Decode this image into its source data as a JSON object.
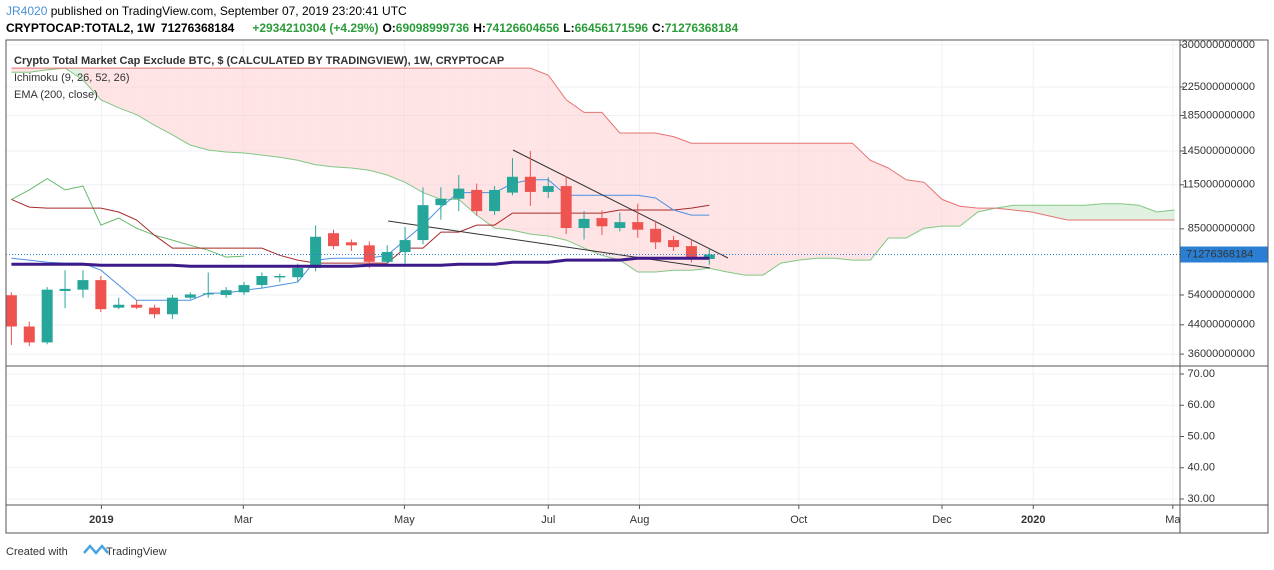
{
  "header": {
    "author": "JR4020",
    "published": " published on TradingView.com, September 07, 2019 23:20:41 UTC",
    "symbol": "CRYPTOCAP:TOTAL2, 1W",
    "last": "71276368184",
    "change": "+2934210304 (+4.29%)",
    "ohlc": [
      {
        "label": "O:",
        "value": "69098999736"
      },
      {
        "label": "H:",
        "value": "74126604656"
      },
      {
        "label": "L:",
        "value": "66456171596"
      },
      {
        "label": "C:",
        "value": "71276368184"
      }
    ]
  },
  "chart_data": [
    {
      "type": "candlestick",
      "title": "Crypto Total Market Cap Exclude BTC, $ (CALCULATED BY TRADINGVIEW), 1W, CRYPTOCAP",
      "indicators": [
        "Ichimoku (9, 26, 52, 26)",
        "EMA (200, close)"
      ],
      "log_scale": true,
      "ylim": [
        33400000000,
        310500000000
      ],
      "yticks": [
        300000000000,
        225000000000,
        185000000000,
        145000000000,
        115000000000,
        85000000000,
        54000000000,
        44000000000,
        36000000000
      ],
      "xlim": [
        -0.3,
        65.3
      ],
      "xticks": [
        {
          "value": 5.03,
          "label": "2019"
        },
        {
          "value": 12.96,
          "label": "Mar"
        },
        {
          "value": 21.96,
          "label": "May"
        },
        {
          "value": 30.0,
          "label": "Jul"
        },
        {
          "value": 35.1,
          "label": "Aug"
        },
        {
          "value": 44.0,
          "label": "Oct"
        },
        {
          "value": 52.0,
          "label": "Dec"
        },
        {
          "value": 57.1,
          "label": "2020"
        },
        {
          "value": 64.9,
          "label": "Ma"
        }
      ],
      "up_color": "#26a69a",
      "down_color": "#ef5350",
      "cloud_up_color": "#c8e6c9",
      "cloud_down_color": "#ffcdd2",
      "last_color": "#2a7fd4",
      "open": [
        53900000000,
        43500000000,
        39000000000,
        55500000000,
        56000000000,
        59800000000,
        49500000000,
        50500000000,
        49500000000,
        47300000000,
        53000000000,
        54200000000,
        54000000000,
        55000000000,
        57800000000,
        60900000000,
        61000000000,
        65000000000,
        82500000000,
        77500000000,
        75900000000,
        67800000000,
        72500000000,
        78700000000,
        100000000000,
        104500000000,
        111000000000,
        96000000000,
        109000000000,
        121500000000,
        109500000000,
        114000000000,
        85500000000,
        91500000000,
        85500000000,
        89000000000,
        85000000000,
        78700000000,
        75500000000,
        69098999736
      ],
      "high": [
        55000000000,
        45000000000,
        57000000000,
        64000000000,
        64000000000,
        61500000000,
        53000000000,
        52000000000,
        50500000000,
        54000000000,
        55000000000,
        63000000000,
        57000000000,
        59000000000,
        63000000000,
        62500000000,
        67000000000,
        87000000000,
        84500000000,
        79000000000,
        78000000000,
        76000000000,
        86000000000,
        113000000000,
        113000000000,
        123000000000,
        116000000000,
        114000000000,
        138000000000,
        145000000000,
        121000000000,
        122000000000,
        96000000000,
        96500000000,
        95000000000,
        101000000000,
        90000000000,
        81000000000,
        79000000000,
        74126604656
      ],
      "low": [
        38300000000,
        38000000000,
        38500000000,
        49300000000,
        53000000000,
        48000000000,
        49000000000,
        49000000000,
        46000000000,
        45800000000,
        52500000000,
        53000000000,
        53000000000,
        54000000000,
        56500000000,
        59000000000,
        59000000000,
        63500000000,
        74000000000,
        73000000000,
        65000000000,
        65500000000,
        67000000000,
        76500000000,
        90500000000,
        96000000000,
        93000000000,
        93500000000,
        107000000000,
        99500000000,
        105000000000,
        82000000000,
        79000000000,
        81500000000,
        83500000000,
        80000000000,
        74000000000,
        73000000000,
        67500000000,
        66456171596
      ],
      "close": [
        43500000000,
        39000000000,
        56000000000,
        56300000000,
        59800000000,
        49000000000,
        50500000000,
        49500000000,
        47300000000,
        53000000000,
        54200000000,
        54600000000,
        55800000000,
        57800000000,
        61500000000,
        61500000000,
        65000000000,
        80500000000,
        75500000000,
        75900000000,
        67800000000,
        72500000000,
        78700000000,
        100000000000,
        104500000000,
        112000000000,
        96000000000,
        111000000000,
        121500000000,
        109500000000,
        114000000000,
        85500000000,
        91000000000,
        86500000000,
        89000000000,
        84500000000,
        77500000000,
        75000000000,
        69100000000,
        71276368184
      ],
      "series": [
        {
          "name": "Leading Span A",
          "color": "#81c784",
          "width": 1,
          "values": [
            249000000000,
            249000000000,
            253000000000,
            256000000000,
            236000000000,
            206000000000,
            195000000000,
            186000000000,
            173000000000,
            162000000000,
            151000000000,
            146000000000,
            144000000000,
            143000000000,
            141000000000,
            139000000000,
            136000000000,
            132000000000,
            130000000000,
            129000000000,
            127000000000,
            123000000000,
            117000000000,
            109000000000,
            104000000000,
            104000000000,
            93400000000,
            85400000000,
            84200000000,
            82000000000,
            80900000000,
            78700000000,
            74500000000,
            70900000000,
            68600000000,
            63200000000,
            63200000000,
            64000000000,
            64000000000,
            64900000000,
            63200000000,
            61900000000,
            61900000000,
            67200000000,
            68600000000,
            69500000000,
            69500000000,
            68600000000,
            68600000000,
            79800000000,
            79800000000,
            85400000000,
            86600000000,
            86600000000,
            95400000000,
            98000000000,
            100000000000,
            100000000000,
            100000000000,
            100000000000,
            100000000000,
            101000000000,
            101000000000,
            100000000000,
            95400000000,
            96700000000
          ]
        },
        {
          "name": "Leading Span B",
          "color": "#e57373",
          "width": 1,
          "values": [
            256000000000,
            256000000000,
            256000000000,
            256000000000,
            256000000000,
            256000000000,
            256000000000,
            256000000000,
            256000000000,
            256000000000,
            256000000000,
            256000000000,
            256000000000,
            256000000000,
            256000000000,
            256000000000,
            256000000000,
            256000000000,
            256000000000,
            256000000000,
            256000000000,
            256000000000,
            256000000000,
            256000000000,
            256000000000,
            256000000000,
            256000000000,
            256000000000,
            256000000000,
            256000000000,
            244000000000,
            206000000000,
            189000000000,
            189000000000,
            164000000000,
            164000000000,
            164000000000,
            160000000000,
            153000000000,
            153000000000,
            153000000000,
            153000000000,
            153000000000,
            153000000000,
            153000000000,
            153000000000,
            153000000000,
            153000000000,
            136000000000,
            129000000000,
            119000000000,
            117000000000,
            104000000000,
            99300000000,
            98000000000,
            98000000000,
            96700000000,
            95400000000,
            92800000000,
            90300000000,
            90300000000,
            90300000000,
            90300000000,
            90300000000,
            90300000000,
            90300000000
          ]
        },
        {
          "name": "Lagging Span",
          "color": "#66bb6a",
          "width": 1,
          "values": [
            104000000000,
            111000000000,
            120000000000,
            111000000000,
            114000000000,
            87200000000,
            91500000000,
            85400000000,
            81400000000,
            78700000000,
            75900000000,
            73400000000,
            70000000000,
            70500000000
          ]
        },
        {
          "name": "Base Line",
          "color": "#a52a2a",
          "width": 1,
          "values": [
            104000000000,
            98700000000,
            98000000000,
            98000000000,
            98000000000,
            98000000000,
            95400000000,
            90300000000,
            81400000000,
            74500000000,
            74500000000,
            74500000000,
            74500000000,
            74500000000,
            74500000000,
            70900000000,
            68600000000,
            67200000000,
            67200000000,
            67200000000,
            67200000000,
            67200000000,
            74500000000,
            74500000000,
            83100000000,
            83100000000,
            87200000000,
            87200000000,
            94700000000,
            94700000000,
            94700000000,
            94700000000,
            94700000000,
            94700000000,
            96700000000,
            96700000000,
            96700000000,
            96700000000,
            98000000000,
            100000000000
          ]
        },
        {
          "name": "Conversion Line",
          "color": "#4a90e2",
          "width": 1,
          "values": [
            69500000000,
            68600000000,
            67600000000,
            67200000000,
            67200000000,
            64000000000,
            57800000000,
            52100000000,
            52100000000,
            52100000000,
            52100000000,
            54700000000,
            54700000000,
            55800000000,
            56600000000,
            57800000000,
            59000000000,
            68600000000,
            69500000000,
            69500000000,
            69500000000,
            70900000000,
            78700000000,
            87200000000,
            98700000000,
            109000000000,
            109000000000,
            109000000000,
            116000000000,
            119000000000,
            119000000000,
            107000000000,
            107000000000,
            107000000000,
            107000000000,
            107000000000,
            105000000000,
            96700000000,
            93400000000,
            93400000000
          ]
        },
        {
          "name": "EMA",
          "color": "#3c1a8a",
          "width": 3,
          "values": [
            66700000000,
            66700000000,
            66700000000,
            66700000000,
            66700000000,
            66200000000,
            66200000000,
            66200000000,
            66200000000,
            66200000000,
            65800000000,
            65800000000,
            65800000000,
            65800000000,
            65800000000,
            65800000000,
            65800000000,
            65800000000,
            65800000000,
            65800000000,
            66200000000,
            66200000000,
            66200000000,
            66200000000,
            66200000000,
            66700000000,
            66700000000,
            66700000000,
            67600000000,
            67600000000,
            67600000000,
            68600000000,
            68600000000,
            68600000000,
            68600000000,
            69500000000,
            69500000000,
            69500000000,
            69500000000,
            69500000000
          ]
        }
      ]
    },
    {
      "type": "line",
      "ylim": [
        28.08,
        72.24
      ],
      "yticks": [
        {
          "value": 70,
          "label": "70.00"
        },
        {
          "value": 60,
          "label": "60.00"
        },
        {
          "value": 50,
          "label": "50.00"
        },
        {
          "value": 40,
          "label": "40.00"
        },
        {
          "value": 30,
          "label": "30.00"
        }
      ]
    }
  ],
  "footer": {
    "created": "Created with",
    "brand": "TradingView"
  }
}
